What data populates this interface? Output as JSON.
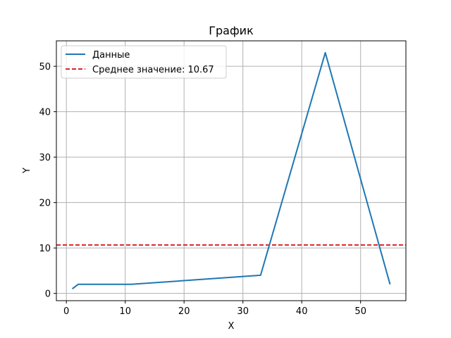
{
  "chart_data": {
    "type": "line",
    "title": "График",
    "xlabel": "X",
    "ylabel": "Y",
    "xlim": [
      -1.7,
      57.7
    ],
    "ylim": [
      -1.6,
      55.6
    ],
    "xticks": [
      0,
      10,
      20,
      30,
      40,
      50
    ],
    "yticks": [
      0,
      10,
      20,
      30,
      40,
      50
    ],
    "grid": true,
    "legend_position": "upper-left",
    "series": [
      {
        "name": "Данные",
        "color": "#1f77b4",
        "linestyle": "solid",
        "x": [
          1,
          2,
          11,
          33,
          44,
          55
        ],
        "y": [
          1,
          2,
          2,
          4,
          53,
          2
        ]
      }
    ],
    "hlines": [
      {
        "name": "Среднее значение: 10.67",
        "color": "#d62728",
        "linestyle": "dashed",
        "y": 10.67
      }
    ]
  }
}
